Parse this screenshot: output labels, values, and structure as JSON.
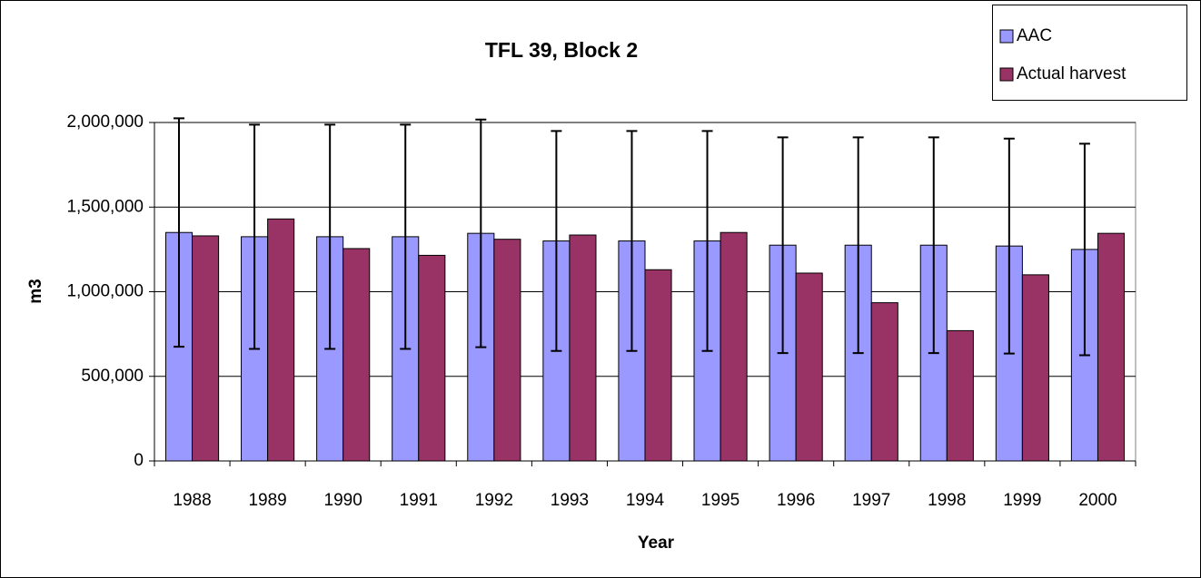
{
  "chart_data": {
    "type": "bar",
    "title": "TFL 39, Block 2",
    "x_label": "Year",
    "y_label": "m3",
    "categories": [
      "1988",
      "1989",
      "1990",
      "1991",
      "1992",
      "1993",
      "1994",
      "1995",
      "1996",
      "1997",
      "1998",
      "1999",
      "2000"
    ],
    "series": [
      {
        "name": "AAC",
        "color": "#9999ff",
        "values": [
          1350000,
          1325000,
          1325000,
          1325000,
          1345000,
          1300000,
          1300000,
          1300000,
          1275000,
          1275000,
          1275000,
          1270000,
          1250000
        ],
        "errors": [
          675000,
          662500,
          662500,
          662500,
          672500,
          650000,
          650000,
          650000,
          637500,
          637500,
          637500,
          635000,
          625000
        ]
      },
      {
        "name": "Actual harvest",
        "color": "#993366",
        "values": [
          1330000,
          1430000,
          1255000,
          1215000,
          1310000,
          1335000,
          1130000,
          1350000,
          1110000,
          935000,
          770000,
          1100000,
          1345000
        ]
      }
    ],
    "ylim": [
      0,
      2000000
    ],
    "yticks": [
      0,
      {
        "value": 500000,
        "label": "500,000"
      },
      {
        "value": 1000000,
        "label": "1,000,000"
      },
      {
        "value": 1500000,
        "label": "1,500,000"
      },
      {
        "value": 2000000,
        "label": "2,000,000"
      }
    ],
    "grid": true,
    "legend": "top-right"
  }
}
